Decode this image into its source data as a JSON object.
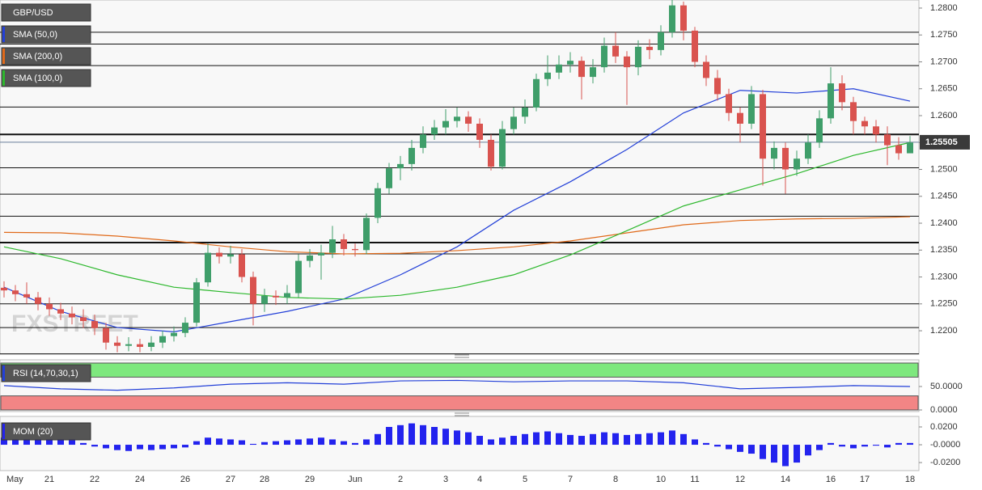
{
  "chart_data": [
    {
      "type": "candlestick",
      "symbol": "GBP/USD",
      "watermark": "FXSTREET",
      "ylim": [
        1.2158,
        1.2815
      ],
      "yticks": [
        {
          "value": 1.22,
          "label": "1.2200"
        },
        {
          "value": 1.225,
          "label": "1.2250"
        },
        {
          "value": 1.23,
          "label": "1.2300"
        },
        {
          "value": 1.235,
          "label": "1.2350"
        },
        {
          "value": 1.24,
          "label": "1.2400"
        },
        {
          "value": 1.245,
          "label": "1.2450"
        },
        {
          "value": 1.25,
          "label": "1.2500"
        },
        {
          "value": 1.255,
          "label": "1.2550"
        },
        {
          "value": 1.26,
          "label": "1.2600"
        },
        {
          "value": 1.265,
          "label": "1.2650"
        },
        {
          "value": 1.27,
          "label": "1.2700"
        },
        {
          "value": 1.275,
          "label": "1.2750"
        },
        {
          "value": 1.28,
          "label": "1.2800"
        }
      ],
      "up_color": "#3f9e6a",
      "down_color": "#d9534f",
      "candles": [
        [
          1.228,
          1.2292,
          1.2262,
          1.2275
        ],
        [
          1.2275,
          1.2285,
          1.2255,
          1.2268
        ],
        [
          1.2268,
          1.229,
          1.225,
          1.2262
        ],
        [
          1.2262,
          1.2272,
          1.2238,
          1.225
        ],
        [
          1.225,
          1.2262,
          1.2228,
          1.224
        ],
        [
          1.224,
          1.2252,
          1.222,
          1.2232
        ],
        [
          1.2232,
          1.2245,
          1.2212,
          1.2225
        ],
        [
          1.2225,
          1.224,
          1.2205,
          1.2218
        ],
        [
          1.2218,
          1.223,
          1.2192,
          1.2205
        ],
        [
          1.2205,
          1.2215,
          1.2165,
          1.2178
        ],
        [
          1.2178,
          1.219,
          1.216,
          1.2172
        ],
        [
          1.2172,
          1.2188,
          1.2162,
          1.2175
        ],
        [
          1.2175,
          1.2185,
          1.216,
          1.217
        ],
        [
          1.217,
          1.219,
          1.2162,
          1.2178
        ],
        [
          1.2178,
          1.22,
          1.2168,
          1.219
        ],
        [
          1.219,
          1.2208,
          1.218,
          1.2196
        ],
        [
          1.2196,
          1.2225,
          1.2188,
          1.2215
        ],
        [
          1.2215,
          1.2298,
          1.2208,
          1.229
        ],
        [
          1.229,
          1.2362,
          1.2282,
          1.2345
        ],
        [
          1.2345,
          1.2355,
          1.2325,
          1.2338
        ],
        [
          1.2338,
          1.2358,
          1.2325,
          1.2342
        ],
        [
          1.2342,
          1.2352,
          1.229,
          1.23
        ],
        [
          1.23,
          1.231,
          1.221,
          1.225
        ],
        [
          1.225,
          1.2278,
          1.2235,
          1.2265
        ],
        [
          1.2265,
          1.2275,
          1.2248,
          1.2262
        ],
        [
          1.2262,
          1.2285,
          1.225,
          1.227
        ],
        [
          1.227,
          1.2342,
          1.2262,
          1.233
        ],
        [
          1.233,
          1.2352,
          1.2318,
          1.234
        ],
        [
          1.234,
          1.236,
          1.2295,
          1.2345
        ],
        [
          1.2345,
          1.2395,
          1.2335,
          1.237
        ],
        [
          1.237,
          1.238,
          1.234,
          1.2352
        ],
        [
          1.2352,
          1.2362,
          1.2338,
          1.235
        ],
        [
          1.235,
          1.2418,
          1.2342,
          1.241
        ],
        [
          1.241,
          1.2475,
          1.24,
          1.2465
        ],
        [
          1.2465,
          1.2512,
          1.2455,
          1.2502
        ],
        [
          1.2502,
          1.2525,
          1.248,
          1.251
        ],
        [
          1.251,
          1.2555,
          1.2498,
          1.254
        ],
        [
          1.254,
          1.258,
          1.253,
          1.2565
        ],
        [
          1.2565,
          1.2592,
          1.2555,
          1.2578
        ],
        [
          1.2578,
          1.2612,
          1.2565,
          1.259
        ],
        [
          1.259,
          1.2615,
          1.2578,
          1.2598
        ],
        [
          1.2598,
          1.2608,
          1.257,
          1.2585
        ],
        [
          1.2585,
          1.2595,
          1.254,
          1.2555
        ],
        [
          1.2555,
          1.2565,
          1.2498,
          1.2505
        ],
        [
          1.2505,
          1.259,
          1.25,
          1.2575
        ],
        [
          1.2575,
          1.2615,
          1.2565,
          1.2598
        ],
        [
          1.2598,
          1.263,
          1.2585,
          1.2615
        ],
        [
          1.2615,
          1.2678,
          1.2608,
          1.2668
        ],
        [
          1.2668,
          1.2712,
          1.2655,
          1.268
        ],
        [
          1.268,
          1.2712,
          1.2668,
          1.2695
        ],
        [
          1.2695,
          1.2718,
          1.268,
          1.2702
        ],
        [
          1.2702,
          1.271,
          1.263,
          1.2672
        ],
        [
          1.2672,
          1.2705,
          1.266,
          1.269
        ],
        [
          1.269,
          1.2745,
          1.268,
          1.273
        ],
        [
          1.273,
          1.2755,
          1.2698,
          1.271
        ],
        [
          1.271,
          1.272,
          1.262,
          1.269
        ],
        [
          1.269,
          1.274,
          1.2675,
          1.2728
        ],
        [
          1.2728,
          1.2742,
          1.2705,
          1.2722
        ],
        [
          1.2722,
          1.2768,
          1.2712,
          1.2755
        ],
        [
          1.2755,
          1.2815,
          1.2745,
          1.2805
        ],
        [
          1.2805,
          1.2812,
          1.274,
          1.2758
        ],
        [
          1.2758,
          1.2765,
          1.269,
          1.27
        ],
        [
          1.27,
          1.2712,
          1.2655,
          1.267
        ],
        [
          1.267,
          1.2685,
          1.2628,
          1.264
        ],
        [
          1.264,
          1.265,
          1.259,
          1.2605
        ],
        [
          1.2605,
          1.2615,
          1.255,
          1.2585
        ],
        [
          1.2585,
          1.2655,
          1.2575,
          1.264
        ],
        [
          1.264,
          1.2648,
          1.247,
          1.252
        ],
        [
          1.252,
          1.2552,
          1.25,
          1.254
        ],
        [
          1.254,
          1.255,
          1.2455,
          1.25
        ],
        [
          1.25,
          1.2535,
          1.2488,
          1.252
        ],
        [
          1.252,
          1.2565,
          1.251,
          1.255
        ],
        [
          1.255,
          1.261,
          1.254,
          1.2595
        ],
        [
          1.2595,
          1.269,
          1.2585,
          1.266
        ],
        [
          1.266,
          1.2675,
          1.261,
          1.2625
        ],
        [
          1.2625,
          1.2635,
          1.2565,
          1.259
        ],
        [
          1.259,
          1.2598,
          1.2565,
          1.258
        ],
        [
          1.258,
          1.2592,
          1.255,
          1.2565
        ],
        [
          1.2565,
          1.258,
          1.2508,
          1.2545
        ],
        [
          1.2545,
          1.256,
          1.2518,
          1.253
        ],
        [
          1.253,
          1.2562,
          1.2535,
          1.255
        ]
      ],
      "levels": [
        {
          "value": 1.2755,
          "strong": false
        },
        {
          "value": 1.2733,
          "strong": false
        },
        {
          "value": 1.2693,
          "strong": false
        },
        {
          "value": 1.2616,
          "strong": false
        },
        {
          "value": 1.2565,
          "strong": true
        },
        {
          "value": 1.2503,
          "strong": false
        },
        {
          "value": 1.2454,
          "strong": false
        },
        {
          "value": 1.2413,
          "strong": false
        },
        {
          "value": 1.2364,
          "strong": true
        },
        {
          "value": 1.2343,
          "strong": false
        },
        {
          "value": 1.225,
          "strong": false
        },
        {
          "value": 1.2206,
          "strong": false
        },
        {
          "value": 1.2157,
          "strong": false
        }
      ],
      "last_price": {
        "value": 1.25505,
        "label": "1.25505"
      },
      "x": [
        0,
        5,
        10,
        15,
        20,
        25,
        30,
        35,
        40,
        45,
        50,
        55,
        60,
        65,
        70,
        75,
        80
      ],
      "series": [
        {
          "name": "SMA (50,0)",
          "color": "#2340d8",
          "values": [
            1.2281,
            1.2236,
            1.2206,
            1.2198,
            1.2217,
            1.2236,
            1.2259,
            1.2304,
            1.2356,
            1.2424,
            1.2477,
            1.2537,
            1.2605,
            1.2647,
            1.2642,
            1.265,
            1.2627
          ]
        },
        {
          "name": "SMA (200,0)",
          "color": "#e06a1a",
          "values": [
            1.2383,
            1.2382,
            1.2376,
            1.2367,
            1.2356,
            1.2347,
            1.2343,
            1.2344,
            1.2349,
            1.2356,
            1.2367,
            1.2382,
            1.2397,
            1.2405,
            1.2408,
            1.2409,
            1.2412
          ]
        },
        {
          "name": "SMA (100,0)",
          "color": "#2db82d",
          "values": [
            1.2356,
            1.2334,
            1.2304,
            1.2281,
            1.2271,
            1.2262,
            1.2259,
            1.2266,
            1.2281,
            1.2304,
            1.2341,
            1.2386,
            1.2432,
            1.2462,
            1.2492,
            1.2526,
            1.255
          ]
        }
      ]
    },
    {
      "type": "line",
      "ylim": [
        0,
        100
      ],
      "yticks": [
        {
          "value": 50,
          "label": "50.0000"
        },
        {
          "value": 0,
          "label": "0.0000"
        }
      ],
      "bands": [
        {
          "from": 70,
          "to": 100,
          "color": "#7ee87e"
        },
        {
          "from": 0,
          "to": 30,
          "color": "#f28585"
        }
      ],
      "x": [
        0,
        5,
        10,
        15,
        20,
        25,
        30,
        35,
        40,
        45,
        50,
        55,
        60,
        65,
        70,
        75,
        80
      ],
      "series": [
        {
          "name": "RSI (14,70,30,1)",
          "color": "#2340d8",
          "values": [
            52,
            45,
            42,
            47,
            55,
            58,
            55,
            62,
            63,
            60,
            62,
            62,
            58,
            45,
            48,
            52,
            50
          ]
        }
      ]
    },
    {
      "type": "bar",
      "ylim": [
        -0.029,
        0.0318
      ],
      "yticks": [
        {
          "value": 0.02,
          "label": "0.0200"
        },
        {
          "value": 0,
          "label": "-0.0000"
        },
        {
          "value": -0.02,
          "label": "-0.0200"
        }
      ],
      "series": [
        {
          "name": "MOM (20)",
          "color": "#2323ee",
          "values": [
            0.008,
            0.006,
            0.007,
            0.009,
            0.01,
            0.008,
            0.005,
            0.002,
            -0.002,
            -0.004,
            -0.006,
            -0.007,
            -0.005,
            -0.006,
            -0.005,
            -0.004,
            -0.003,
            0.004,
            0.008,
            0.007,
            0.006,
            0.005,
            0.001,
            0.003,
            0.004,
            0.005,
            0.006,
            0.007,
            0.008,
            0.006,
            0.004,
            0.002,
            0.006,
            0.012,
            0.02,
            0.022,
            0.024,
            0.022,
            0.02,
            0.018,
            0.016,
            0.014,
            0.01,
            0.006,
            0.008,
            0.01,
            0.012,
            0.014,
            0.015,
            0.013,
            0.011,
            0.01,
            0.012,
            0.014,
            0.013,
            0.011,
            0.012,
            0.013,
            0.014,
            0.016,
            0.012,
            0.006,
            0.002,
            -0.002,
            -0.005,
            -0.008,
            -0.01,
            -0.016,
            -0.02,
            -0.024,
            -0.02,
            -0.012,
            -0.006,
            0.002,
            -0.002,
            -0.004,
            -0.002,
            -0.001,
            -0.003,
            0.002,
            0.002
          ]
        }
      ],
      "xticks": [
        {
          "value": 0,
          "label": "May"
        },
        {
          "value": 4,
          "label": "21"
        },
        {
          "value": 8,
          "label": "22"
        },
        {
          "value": 12,
          "label": "24"
        },
        {
          "value": 16,
          "label": "26"
        },
        {
          "value": 20,
          "label": "27"
        },
        {
          "value": 23,
          "label": "28"
        },
        {
          "value": 27,
          "label": "29"
        },
        {
          "value": 31,
          "label": "Jun"
        },
        {
          "value": 35,
          "label": "2"
        },
        {
          "value": 39,
          "label": "3"
        },
        {
          "value": 42,
          "label": "4"
        },
        {
          "value": 46,
          "label": "5"
        },
        {
          "value": 50,
          "label": "7"
        },
        {
          "value": 54,
          "label": "8"
        },
        {
          "value": 58,
          "label": "10"
        },
        {
          "value": 61,
          "label": "11"
        },
        {
          "value": 65,
          "label": "12"
        },
        {
          "value": 69,
          "label": "14"
        },
        {
          "value": 73,
          "label": "16"
        },
        {
          "value": 76,
          "label": "17"
        },
        {
          "value": 80,
          "label": "18"
        }
      ]
    }
  ]
}
